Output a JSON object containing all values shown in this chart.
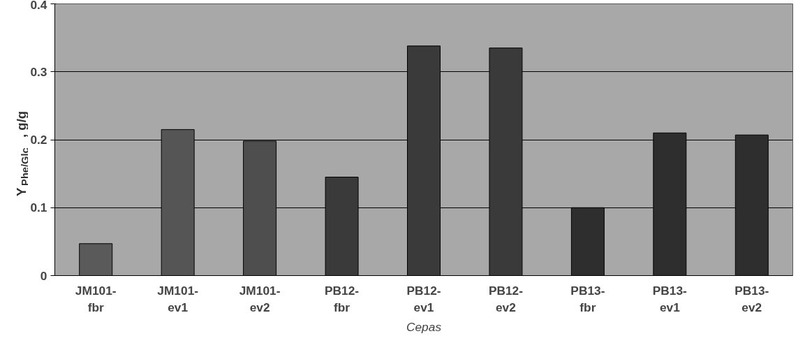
{
  "chart_data": {
    "type": "bar",
    "xlabel": "Cepas",
    "ylabel": "Y$_{Phe/Glc}$, g/g",
    "categories": [
      "JM101-\nfbr",
      "JM101-\nev1",
      "JM101-\nev2",
      "PB12-\nfbr",
      "PB12-\nev1",
      "PB12-\nev2",
      "PB13-\nfbr",
      "PB13-\nev1",
      "PB13-\nev2"
    ],
    "values": [
      0.047,
      0.215,
      0.198,
      0.145,
      0.338,
      0.335,
      0.1,
      0.21,
      0.207
    ],
    "colors": [
      "#5a5a5a",
      "#555555",
      "#4e4e4e",
      "#3a3a3a",
      "#3a3a3a",
      "#3a3a3a",
      "#2e2e2e",
      "#2e2e2e",
      "#2e2e2e"
    ],
    "ylim": [
      0,
      0.4
    ],
    "yticks": [
      0,
      0.1,
      0.2,
      0.3,
      0.4
    ],
    "grid": "y"
  }
}
